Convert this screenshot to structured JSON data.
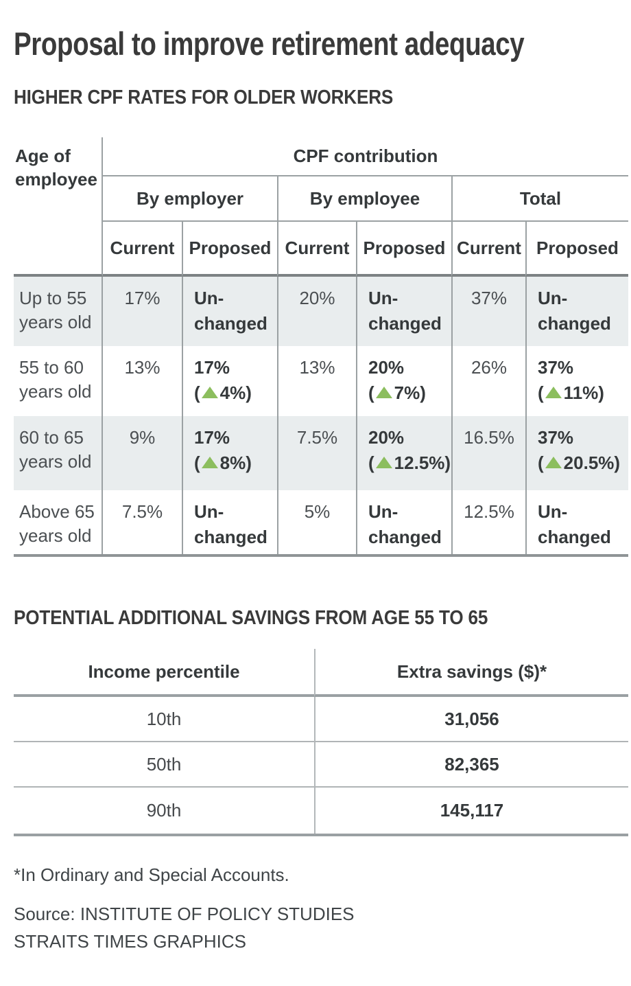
{
  "title": "Proposal to improve retirement adequacy",
  "cpf": {
    "heading": "HIGHER CPF RATES FOR OLDER WORKERS",
    "corner": "Age of\nemployee",
    "group_title": "CPF contribution",
    "col_by_employer": "By employer",
    "col_by_employee": "By employee",
    "col_total": "Total",
    "current_label": "Current",
    "proposed_label": "Proposed",
    "open": "(",
    "close": ")",
    "increase_icon_color": "#8cbe5e",
    "rows": [
      {
        "age": "Up to 55\nyears old",
        "employer_current": "17%",
        "employer_proposed": "Un-\nchanged",
        "employee_current": "20%",
        "employee_proposed": "Un-\nchanged",
        "total_current": "37%",
        "total_proposed": "Un-\nchanged"
      },
      {
        "age": "55 to 60\nyears old",
        "employer_current": "13%",
        "employer_proposed": "17%",
        "employer_delta": "4%",
        "employee_current": "13%",
        "employee_proposed": "20%",
        "employee_delta": "7%",
        "total_current": "26%",
        "total_proposed": "37%",
        "total_delta": "11%"
      },
      {
        "age": "60 to 65\nyears old",
        "employer_current": "9%",
        "employer_proposed": "17%",
        "employer_delta": "8%",
        "employee_current": "7.5%",
        "employee_proposed": "20%",
        "employee_delta": "12.5%",
        "total_current": "16.5%",
        "total_proposed": "37%",
        "total_delta": "20.5%"
      },
      {
        "age": "Above 65\nyears old",
        "employer_current": "7.5%",
        "employer_proposed": "Un-\nchanged",
        "employee_current": "5%",
        "employee_proposed": "Un-\nchanged",
        "total_current": "12.5%",
        "total_proposed": "Un-\nchanged"
      }
    ]
  },
  "savings": {
    "heading": "POTENTIAL ADDITIONAL SAVINGS FROM AGE 55 TO 65",
    "col_percentile": "Income percentile",
    "col_savings": "Extra savings ($)*",
    "rows": [
      {
        "percentile": "10th",
        "amount": "31,056"
      },
      {
        "percentile": "50th",
        "amount": "82,365"
      },
      {
        "percentile": "90th",
        "amount": "145,117"
      }
    ]
  },
  "footer": {
    "footnote": "*In Ordinary and Special Accounts.",
    "source": "Source: INSTITUTE OF POLICY STUDIES",
    "credit": "STRAITS TIMES GRAPHICS"
  },
  "colors": {
    "accent_green": "#8cbe5e",
    "row_shade": "#e9edee",
    "rule_dark": "#7d8284",
    "rule_mid": "#9ba1a3"
  },
  "chart_data": [
    {
      "type": "table",
      "title": "HIGHER CPF RATES FOR OLDER WORKERS",
      "columns": [
        "Age of employee",
        "By employer Current",
        "By employer Proposed",
        "By employee Current",
        "By employee Proposed",
        "Total Current",
        "Total Proposed"
      ],
      "rows": [
        [
          "Up to 55 years old",
          "17%",
          "Unchanged",
          "20%",
          "Unchanged",
          "37%",
          "Unchanged"
        ],
        [
          "55 to 60 years old",
          "13%",
          "17% (+4%)",
          "13%",
          "20% (+7%)",
          "26%",
          "37% (+11%)"
        ],
        [
          "60 to 65 years old",
          "9%",
          "17% (+8%)",
          "7.5%",
          "20% (+12.5%)",
          "16.5%",
          "37% (+20.5%)"
        ],
        [
          "Above 65 years old",
          "7.5%",
          "Unchanged",
          "5%",
          "Unchanged",
          "12.5%",
          "Unchanged"
        ]
      ]
    },
    {
      "type": "table",
      "title": "POTENTIAL ADDITIONAL SAVINGS FROM AGE 55 TO 65",
      "columns": [
        "Income percentile",
        "Extra savings ($)*"
      ],
      "rows": [
        [
          "10th",
          31056
        ],
        [
          "50th",
          82365
        ],
        [
          "90th",
          145117
        ]
      ]
    }
  ]
}
